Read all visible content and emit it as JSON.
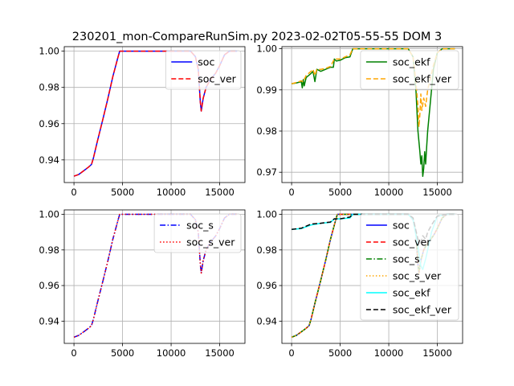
{
  "figure": {
    "title": "230201_mon-CompareRunSim.py   2023-02-02T05-55-55 DOM 3"
  },
  "chart_data": [
    {
      "type": "line",
      "xlim": [
        -1000,
        17600
      ],
      "ylim": [
        0.9275,
        1.0025
      ],
      "xticks": [
        0,
        5000,
        10000,
        15000
      ],
      "xtick_labels": [
        "0",
        "5000",
        "10000",
        "15000"
      ],
      "yticks": [
        0.94,
        0.96,
        0.98,
        1.0
      ],
      "ytick_labels": [
        "0.94",
        "0.96",
        "0.98",
        "1.00"
      ],
      "grid": true,
      "legend_position": "upper-right",
      "series": [
        {
          "name": "soc",
          "color": "#0000ff",
          "style": "solid",
          "x": [
            0,
            500,
            1000,
            1500,
            1800,
            2000,
            2400,
            3000,
            3500,
            4000,
            4500,
            4700,
            5000,
            8000,
            12000,
            12500,
            12800,
            13000,
            13100,
            13300,
            13600,
            14000,
            14600,
            15000,
            15500,
            16000,
            16800
          ],
          "y": [
            0.931,
            0.932,
            0.934,
            0.936,
            0.9375,
            0.941,
            0.95,
            0.963,
            0.974,
            0.986,
            0.996,
            1.0,
            1.0,
            1.0,
            1.0,
            0.997,
            0.99,
            0.972,
            0.967,
            0.974,
            0.98,
            0.984,
            0.988,
            0.992,
            0.998,
            1.0,
            1.0
          ]
        },
        {
          "name": "soc_ver",
          "color": "#ff0000",
          "style": "dashed",
          "x": [
            0,
            500,
            1000,
            1500,
            1800,
            2000,
            2400,
            3000,
            3500,
            4000,
            4500,
            4700,
            5000,
            8000,
            12000,
            12500,
            12800,
            13000,
            13100,
            13300,
            13600,
            14000,
            14600,
            15000,
            15500,
            16000,
            16800
          ],
          "y": [
            0.931,
            0.932,
            0.934,
            0.936,
            0.9375,
            0.941,
            0.95,
            0.963,
            0.974,
            0.986,
            0.996,
            1.0,
            1.0,
            1.0,
            1.0,
            0.997,
            0.99,
            0.972,
            0.967,
            0.974,
            0.98,
            0.984,
            0.988,
            0.992,
            0.998,
            1.0,
            1.0
          ]
        }
      ]
    },
    {
      "type": "line",
      "xlim": [
        -1000,
        17600
      ],
      "ylim": [
        0.9675,
        1.0005
      ],
      "xticks": [
        0,
        5000,
        10000,
        15000
      ],
      "xtick_labels": [
        "0",
        "5000",
        "10000",
        "15000"
      ],
      "yticks": [
        0.97,
        0.98,
        0.99,
        1.0
      ],
      "ytick_labels": [
        "0.97",
        "0.98",
        "0.99",
        "1.00"
      ],
      "grid": true,
      "legend_position": "upper-right",
      "series": [
        {
          "name": "soc_ekf",
          "color": "#008000",
          "style": "solid",
          "x": [
            0,
            500,
            1000,
            1100,
            1200,
            1300,
            1500,
            2000,
            2200,
            2400,
            2600,
            3000,
            3500,
            4000,
            4300,
            4400,
            4600,
            5000,
            5500,
            6000,
            6300,
            8000,
            10000,
            11000,
            12000,
            12500,
            12800,
            13000,
            13200,
            13300,
            13400,
            13500,
            13600,
            13700,
            13800,
            13900,
            14000,
            14200,
            14400,
            14600,
            15000,
            15500,
            16000,
            16800
          ],
          "y": [
            0.9915,
            0.9917,
            0.992,
            0.9905,
            0.9925,
            0.991,
            0.993,
            0.994,
            0.9945,
            0.992,
            0.995,
            0.9945,
            0.995,
            0.9955,
            0.9955,
            0.9975,
            0.997,
            0.9972,
            0.9978,
            0.998,
            1.0,
            1.0,
            1.0,
            1.0,
            1.0,
            0.998,
            0.99,
            0.98,
            0.975,
            0.972,
            0.974,
            0.969,
            0.971,
            0.975,
            0.972,
            0.976,
            0.98,
            0.985,
            0.99,
            0.995,
            0.999,
            1.0,
            1.0,
            1.0
          ]
        },
        {
          "name": "soc_ekf_ver",
          "color": "#ffa500",
          "style": "dashed",
          "x": [
            0,
            500,
            1000,
            1200,
            1500,
            2000,
            2200,
            2400,
            2600,
            3000,
            3500,
            4000,
            4400,
            5000,
            5500,
            6000,
            6300,
            8000,
            10000,
            11000,
            12000,
            12500,
            12800,
            13000,
            13100,
            13200,
            13300,
            13400,
            13600,
            13800,
            14000,
            14300,
            14600,
            15000,
            15500,
            16000,
            16800
          ],
          "y": [
            0.9915,
            0.9918,
            0.9922,
            0.992,
            0.9935,
            0.9945,
            0.995,
            0.9935,
            0.995,
            0.995,
            0.9952,
            0.9957,
            0.9975,
            0.9975,
            0.998,
            0.9985,
            1.0,
            1.0,
            1.0,
            1.0,
            1.0,
            0.998,
            0.992,
            0.986,
            0.981,
            0.984,
            0.989,
            0.985,
            0.988,
            0.986,
            0.99,
            0.993,
            0.996,
            0.999,
            1.0,
            1.0,
            1.0
          ]
        }
      ]
    },
    {
      "type": "line",
      "xlim": [
        -1000,
        17600
      ],
      "ylim": [
        0.9275,
        1.0025
      ],
      "xticks": [
        0,
        5000,
        10000,
        15000
      ],
      "xtick_labels": [
        "0",
        "5000",
        "10000",
        "15000"
      ],
      "yticks": [
        0.94,
        0.96,
        0.98,
        1.0
      ],
      "ytick_labels": [
        "0.94",
        "0.96",
        "0.98",
        "1.00"
      ],
      "grid": true,
      "legend_position": "upper-right",
      "series": [
        {
          "name": "soc_s",
          "color": "#0000ff",
          "style": "dashdot",
          "x": [
            0,
            500,
            1000,
            1500,
            1800,
            2000,
            2400,
            3000,
            3500,
            4000,
            4500,
            4700,
            5000,
            8000,
            12000,
            12500,
            12800,
            13000,
            13100,
            13300,
            13600,
            14000,
            14600,
            15000,
            15500,
            16000,
            16800
          ],
          "y": [
            0.931,
            0.932,
            0.934,
            0.936,
            0.9375,
            0.941,
            0.95,
            0.963,
            0.974,
            0.986,
            0.996,
            1.0,
            1.0,
            1.0,
            1.0,
            0.997,
            0.99,
            0.972,
            0.967,
            0.974,
            0.98,
            0.984,
            0.988,
            0.992,
            0.998,
            1.0,
            1.0
          ]
        },
        {
          "name": "soc_s_ver",
          "color": "#ff0000",
          "style": "dotted",
          "x": [
            0,
            500,
            1000,
            1500,
            1800,
            2000,
            2400,
            3000,
            3500,
            4000,
            4500,
            4700,
            5000,
            8000,
            12000,
            12500,
            12800,
            13000,
            13100,
            13300,
            13600,
            14000,
            14600,
            15000,
            15500,
            16000,
            16800
          ],
          "y": [
            0.931,
            0.932,
            0.934,
            0.936,
            0.9375,
            0.941,
            0.95,
            0.963,
            0.974,
            0.986,
            0.996,
            1.0,
            1.0,
            1.0,
            1.0,
            0.997,
            0.99,
            0.972,
            0.967,
            0.974,
            0.98,
            0.984,
            0.988,
            0.992,
            0.998,
            1.0,
            1.0
          ]
        }
      ]
    },
    {
      "type": "line",
      "xlim": [
        -1000,
        17600
      ],
      "ylim": [
        0.9275,
        1.0025
      ],
      "xticks": [
        0,
        5000,
        10000,
        15000
      ],
      "xtick_labels": [
        "0",
        "5000",
        "10000",
        "15000"
      ],
      "yticks": [
        0.94,
        0.96,
        0.98,
        1.0
      ],
      "ytick_labels": [
        "0.94",
        "0.96",
        "0.98",
        "1.00"
      ],
      "grid": true,
      "legend_position": "upper-right",
      "series": [
        {
          "name": "soc",
          "color": "#0000ff",
          "style": "solid",
          "x": [
            0,
            500,
            1000,
            1500,
            1800,
            2000,
            2400,
            3000,
            3500,
            4000,
            4500,
            4700,
            5000,
            8000,
            12000,
            12500,
            12800,
            13000,
            13100,
            13300,
            13600,
            14000,
            14600,
            15000,
            15500,
            16000,
            16800
          ],
          "y": [
            0.931,
            0.932,
            0.934,
            0.936,
            0.9375,
            0.941,
            0.95,
            0.963,
            0.974,
            0.986,
            0.996,
            1.0,
            1.0,
            1.0,
            1.0,
            0.997,
            0.99,
            0.972,
            0.967,
            0.974,
            0.98,
            0.984,
            0.988,
            0.992,
            0.998,
            1.0,
            1.0
          ]
        },
        {
          "name": "soc_ver",
          "color": "#ff0000",
          "style": "dashed",
          "x": [
            0,
            500,
            1000,
            1500,
            1800,
            2000,
            2400,
            3000,
            3500,
            4000,
            4500,
            4700,
            5000,
            8000,
            12000,
            12500,
            12800,
            13000,
            13100,
            13300,
            13600,
            14000,
            14600,
            15000,
            15500,
            16000,
            16800
          ],
          "y": [
            0.931,
            0.932,
            0.934,
            0.936,
            0.9375,
            0.941,
            0.95,
            0.963,
            0.974,
            0.986,
            0.996,
            1.0,
            1.0,
            1.0,
            1.0,
            0.997,
            0.99,
            0.972,
            0.967,
            0.974,
            0.98,
            0.984,
            0.988,
            0.992,
            0.998,
            1.0,
            1.0
          ]
        },
        {
          "name": "soc_s",
          "color": "#008000",
          "style": "dashdot",
          "x": [
            0,
            500,
            1000,
            1500,
            1800,
            2000,
            2400,
            3000,
            3500,
            4000,
            4500,
            4700,
            5000,
            8000,
            12000,
            12500,
            12800,
            13000,
            13100,
            13300,
            13600,
            14000,
            14600,
            15000,
            15500,
            16000,
            16800
          ],
          "y": [
            0.931,
            0.932,
            0.934,
            0.936,
            0.9375,
            0.941,
            0.95,
            0.963,
            0.974,
            0.986,
            0.996,
            1.0,
            1.0,
            1.0,
            1.0,
            0.997,
            0.99,
            0.972,
            0.967,
            0.974,
            0.98,
            0.984,
            0.988,
            0.992,
            0.998,
            1.0,
            1.0
          ]
        },
        {
          "name": "soc_s_ver",
          "color": "#ffa500",
          "style": "dotted",
          "x": [
            0,
            500,
            1000,
            1500,
            1800,
            2000,
            2400,
            3000,
            3500,
            4000,
            4500,
            4700,
            5000,
            8000,
            12000,
            12500,
            12800,
            13000,
            13100,
            13300,
            13600,
            14000,
            14600,
            15000,
            15500,
            16000,
            16800
          ],
          "y": [
            0.931,
            0.932,
            0.934,
            0.936,
            0.9375,
            0.941,
            0.95,
            0.963,
            0.974,
            0.986,
            0.996,
            1.0,
            1.0,
            1.0,
            1.0,
            0.997,
            0.99,
            0.972,
            0.967,
            0.974,
            0.98,
            0.984,
            0.988,
            0.992,
            0.998,
            1.0,
            1.0
          ]
        },
        {
          "name": "soc_ekf",
          "color": "#00ffff",
          "style": "solid",
          "x": [
            0,
            1000,
            2000,
            3000,
            4000,
            4400,
            5000,
            6000,
            6300,
            8000,
            12000,
            12500,
            13000,
            13300,
            13500,
            13800,
            14000,
            14400,
            15000,
            16000,
            16800
          ],
          "y": [
            0.9915,
            0.992,
            0.994,
            0.995,
            0.9955,
            0.9975,
            0.9975,
            0.998,
            1.0,
            1.0,
            1.0,
            0.997,
            0.982,
            0.971,
            0.969,
            0.975,
            0.98,
            0.99,
            0.999,
            1.0,
            1.0
          ]
        },
        {
          "name": "soc_ekf_ver",
          "color": "#000000",
          "style": "dashed",
          "x": [
            0,
            1000,
            2000,
            3000,
            4000,
            4400,
            5000,
            6000,
            6300,
            8000,
            12000,
            12500,
            13000,
            13300,
            13500,
            13800,
            14000,
            14400,
            15000,
            16000,
            16800
          ],
          "y": [
            0.9915,
            0.9922,
            0.9945,
            0.995,
            0.9957,
            0.9975,
            0.9975,
            0.9985,
            1.0,
            1.0,
            1.0,
            0.998,
            0.986,
            0.984,
            0.988,
            0.986,
            0.99,
            0.994,
            0.999,
            1.0,
            1.0
          ]
        }
      ]
    }
  ]
}
